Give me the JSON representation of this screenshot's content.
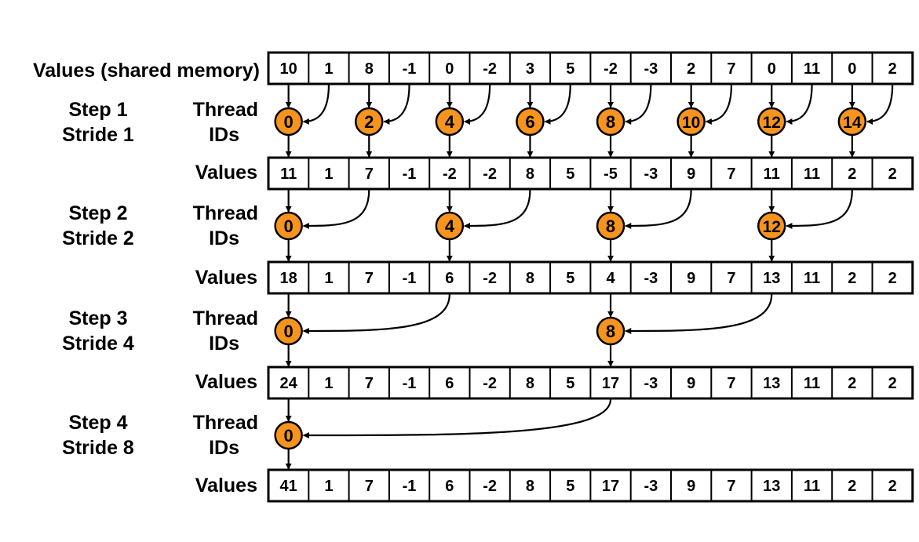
{
  "header_label": "Values (shared memory)",
  "initial_values": [
    "10",
    "1",
    "8",
    "-1",
    "0",
    "-2",
    "3",
    "5",
    "-2",
    "-3",
    "2",
    "7",
    "0",
    "11",
    "0",
    "2"
  ],
  "colors": {
    "thread_fill": "#F7941D",
    "stroke": "#000000",
    "background": "#FFFFFF"
  },
  "steps": [
    {
      "step_label": "Step 1",
      "stride_label": "Stride 1",
      "thread_label_1": "Thread",
      "thread_label_2": "IDs",
      "threads": [
        "0",
        "2",
        "4",
        "6",
        "8",
        "10",
        "12",
        "14"
      ],
      "stride": 1,
      "values_label": "Values",
      "values": [
        "11",
        "1",
        "7",
        "-1",
        "-2",
        "-2",
        "8",
        "5",
        "-5",
        "-3",
        "9",
        "7",
        "11",
        "11",
        "2",
        "2"
      ]
    },
    {
      "step_label": "Step 2",
      "stride_label": "Stride 2",
      "thread_label_1": "Thread",
      "thread_label_2": "IDs",
      "threads": [
        "0",
        "4",
        "8",
        "12"
      ],
      "stride": 2,
      "values_label": "Values",
      "values": [
        "18",
        "1",
        "7",
        "-1",
        "6",
        "-2",
        "8",
        "5",
        "4",
        "-3",
        "9",
        "7",
        "13",
        "11",
        "2",
        "2"
      ]
    },
    {
      "step_label": "Step 3",
      "stride_label": "Stride 4",
      "thread_label_1": "Thread",
      "thread_label_2": "IDs",
      "threads": [
        "0",
        "8"
      ],
      "stride": 4,
      "values_label": "Values",
      "values": [
        "24",
        "1",
        "7",
        "-1",
        "6",
        "-2",
        "8",
        "5",
        "17",
        "-3",
        "9",
        "7",
        "13",
        "11",
        "2",
        "2"
      ]
    },
    {
      "step_label": "Step 4",
      "stride_label": "Stride 8",
      "thread_label_1": "Thread",
      "thread_label_2": "IDs",
      "threads": [
        "0"
      ],
      "stride": 8,
      "values_label": "Values",
      "values": [
        "41",
        "1",
        "7",
        "-1",
        "6",
        "-2",
        "8",
        "5",
        "17",
        "-3",
        "9",
        "7",
        "13",
        "11",
        "2",
        "2"
      ]
    }
  ]
}
